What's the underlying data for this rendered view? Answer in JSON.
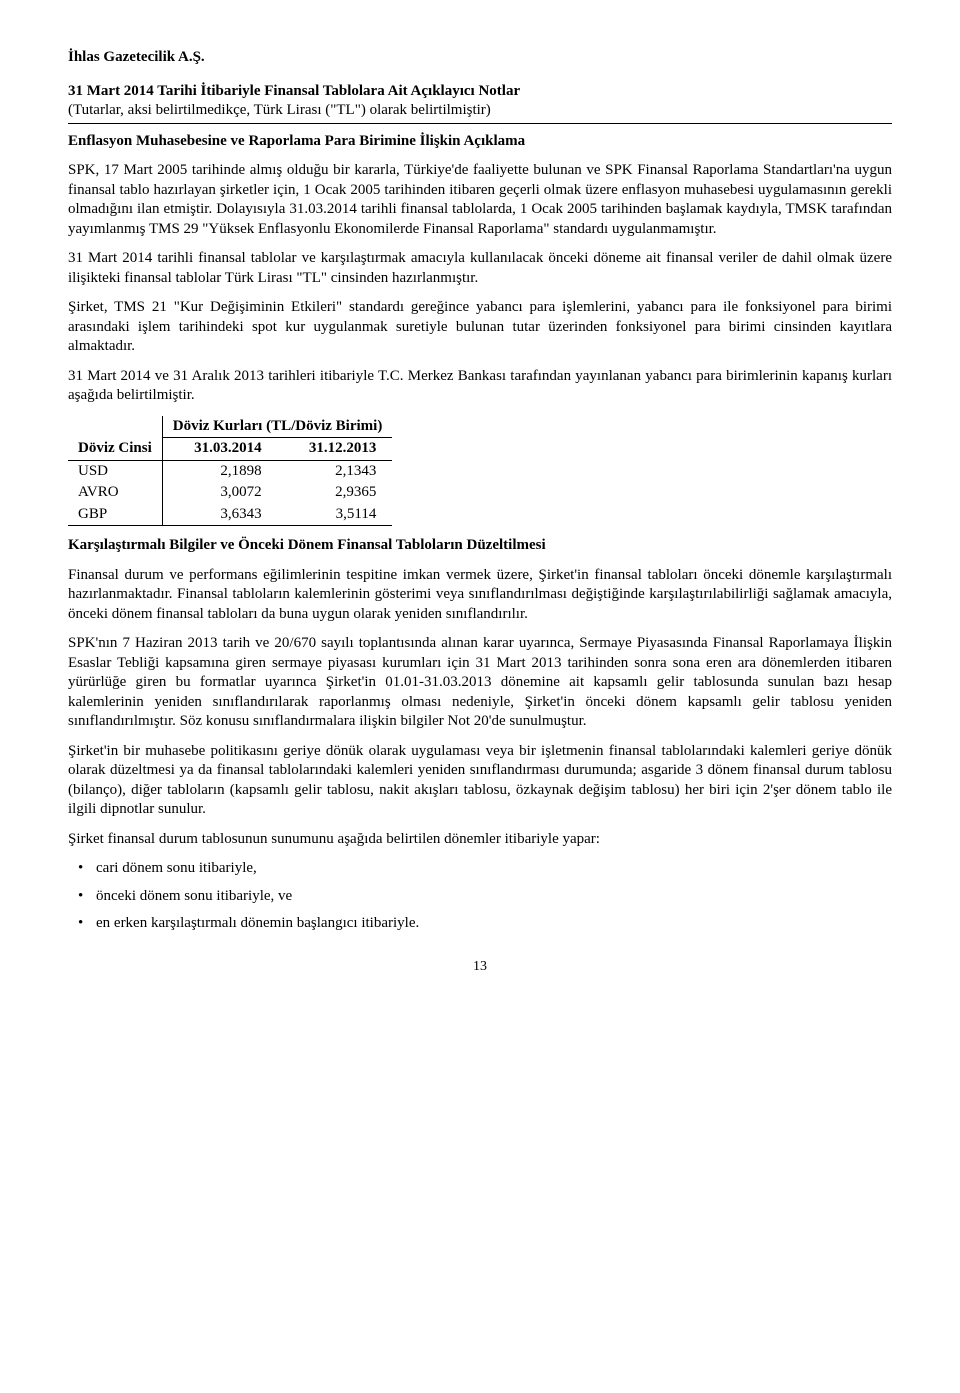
{
  "header": {
    "company": "İhlas Gazetecilik A.Ş.",
    "notes_title": "31 Mart 2014 Tarihi İtibariyle Finansal Tablolara Ait Açıklayıcı Notlar",
    "notes_sub": "(Tutarlar, aksi belirtilmedikçe, Türk Lirası (\"TL\") olarak belirtilmiştir)"
  },
  "section1": {
    "title": "Enflasyon Muhasebesine ve Raporlama Para Birimine İlişkin Açıklama",
    "p1": "SPK, 17 Mart 2005 tarihinde almış olduğu bir kararla, Türkiye'de faaliyette bulunan ve SPK Finansal Raporlama Standartları'na uygun finansal tablo hazırlayan şirketler için, 1 Ocak 2005 tarihinden itibaren geçerli olmak üzere enflasyon muhasebesi uygulamasının gerekli olmadığını ilan etmiştir. Dolayısıyla 31.03.2014 tarihli finansal tablolarda, 1 Ocak 2005 tarihinden başlamak kaydıyla, TMSK tarafından yayımlanmış TMS 29 \"Yüksek Enflasyonlu Ekonomilerde Finansal Raporlama\" standardı uygulanmamıştır.",
    "p2": "31 Mart 2014 tarihli finansal tablolar ve karşılaştırmak amacıyla kullanılacak önceki döneme ait finansal veriler de dahil olmak üzere ilişikteki finansal tablolar Türk Lirası \"TL\" cinsinden hazırlanmıştır.",
    "p3": "Şirket, TMS 21 \"Kur Değişiminin Etkileri\" standardı gereğince yabancı para işlemlerini, yabancı para ile fonksiyonel para birimi arasındaki işlem tarihindeki spot kur uygulanmak suretiyle bulunan tutar üzerinden fonksiyonel para birimi cinsinden kayıtlara almaktadır.",
    "p4": "31 Mart 2014 ve 31 Aralık 2013 tarihleri itibariyle T.C. Merkez Bankası tarafından yayınlanan yabancı para birimlerinin kapanış kurları aşağıda belirtilmiştir."
  },
  "fx_table": {
    "caption": "Döviz Kurları (TL/Döviz Birimi)",
    "col0": "Döviz Cinsi",
    "col1": "31.03.2014",
    "col2": "31.12.2013",
    "rows": [
      {
        "c": "USD",
        "v1": "2,1898",
        "v2": "2,1343"
      },
      {
        "c": "AVRO",
        "v1": "3,0072",
        "v2": "2,9365"
      },
      {
        "c": "GBP",
        "v1": "3,6343",
        "v2": "3,5114"
      }
    ]
  },
  "section2": {
    "title": "Karşılaştırmalı Bilgiler ve Önceki Dönem Finansal Tabloların Düzeltilmesi",
    "p1": "Finansal durum ve performans eğilimlerinin tespitine imkan vermek üzere, Şirket'in finansal tabloları önceki dönemle karşılaştırmalı hazırlanmaktadır. Finansal tabloların kalemlerinin gösterimi veya sınıflandırılması değiştiğinde karşılaştırılabilirliği sağlamak amacıyla, önceki dönem finansal tabloları da buna uygun olarak yeniden sınıflandırılır.",
    "p2": "SPK'nın 7 Haziran 2013 tarih ve 20/670 sayılı toplantısında alınan karar uyarınca, Sermaye Piyasasında Finansal Raporlamaya İlişkin Esaslar Tebliği kapsamına giren sermaye piyasası kurumları için 31 Mart 2013 tarihinden sonra sona eren ara dönemlerden itibaren yürürlüğe giren bu formatlar uyarınca Şirket'in 01.01-31.03.2013 dönemine ait kapsamlı gelir tablosunda sunulan bazı hesap kalemlerinin yeniden sınıflandırılarak raporlanmış olması nedeniyle, Şirket'in önceki dönem kapsamlı gelir tablosu yeniden sınıflandırılmıştır. Söz konusu sınıflandırmalara ilişkin bilgiler Not 20'de sunulmuştur.",
    "p3": "Şirket'in bir muhasebe politikasını geriye dönük olarak uygulaması veya bir işletmenin finansal tablolarındaki kalemleri geriye dönük olarak düzeltmesi ya da finansal tablolarındaki kalemleri yeniden sınıflandırması durumunda; asgaride 3 dönem finansal durum tablosu (bilanço), diğer tabloların (kapsamlı gelir tablosu, nakit akışları tablosu, özkaynak değişim tablosu) her biri için 2'şer dönem tablo ile ilgili dipnotlar sunulur.",
    "p4": "Şirket finansal durum tablosunun sunumunu aşağıda belirtilen dönemler itibariyle yapar:",
    "bullets": [
      "cari dönem sonu itibariyle,",
      "önceki dönem sonu itibariyle, ve",
      "en erken karşılaştırmalı dönemin başlangıcı itibariyle."
    ]
  },
  "page_number": "13"
}
